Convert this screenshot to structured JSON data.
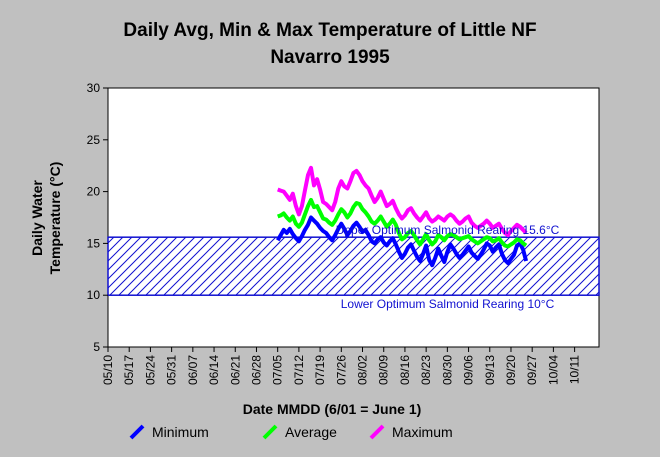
{
  "chart_data": {
    "type": "line",
    "title_line1": "Daily Avg, Min & Max Temperature of Little NF",
    "title_line2": "Navarro 1995",
    "xlabel": "Date MMDD (6/01 = June 1)",
    "ylabel_line1": "Daily Water",
    "ylabel_line2": "Temperature (°C)",
    "ylim": [
      5,
      30
    ],
    "y_ticks": [
      "5",
      "10",
      "15",
      "20",
      "25",
      "30"
    ],
    "x_ticks": [
      "05/10",
      "05/17",
      "05/24",
      "05/31",
      "06/07",
      "06/14",
      "06/21",
      "06/28",
      "07/05",
      "07/12",
      "07/19",
      "07/26",
      "08/02",
      "08/09",
      "08/16",
      "08/23",
      "08/30",
      "09/06",
      "09/13",
      "09/20",
      "09/27",
      "10/04",
      "10/11"
    ],
    "grid": false,
    "legend_placement": "bottom",
    "bands": [
      {
        "label": "Upper Optimum Salmonid Rearing 15.6°C",
        "value": 15.6
      },
      {
        "label": "Lower Optimum Salmonid Rearing 10°C",
        "value": 10
      }
    ],
    "band_color": "#1010d0",
    "series": [
      {
        "name": "Minimum",
        "color": "#0000ff",
        "values": [
          15.3,
          15.8,
          16.3,
          16.0,
          16.4,
          15.9,
          15.5,
          15.2,
          15.7,
          16.3,
          16.8,
          17.5,
          17.2,
          16.9,
          16.5,
          16.2,
          16.0,
          15.6,
          15.3,
          15.8,
          16.4,
          16.9,
          16.4,
          15.8,
          16.2,
          16.7,
          17.0,
          16.6,
          16.1,
          16.3,
          15.8,
          15.2,
          15.0,
          15.4,
          15.6,
          15.1,
          14.8,
          15.2,
          15.5,
          14.9,
          14.2,
          13.6,
          14.0,
          14.6,
          14.9,
          14.3,
          13.7,
          13.3,
          14.0,
          14.8,
          13.4,
          12.9,
          13.6,
          14.5,
          13.8,
          13.2,
          14.2,
          14.9,
          14.5,
          14.0,
          13.6,
          13.9,
          14.3,
          14.7,
          14.1,
          13.8,
          13.5,
          13.9,
          14.4,
          15.0,
          14.8,
          14.2,
          14.6,
          14.9,
          14.0,
          13.4,
          13.1,
          13.5,
          13.9,
          14.8,
          15.0,
          14.4,
          13.3
        ]
      },
      {
        "name": "Average",
        "color": "#00ff00",
        "values": [
          17.6,
          17.7,
          17.9,
          17.5,
          17.2,
          17.6,
          16.9,
          16.6,
          17.0,
          17.8,
          18.6,
          19.2,
          18.5,
          18.6,
          18.0,
          17.4,
          17.3,
          17.0,
          16.8,
          17.2,
          17.8,
          18.3,
          18.0,
          17.5,
          17.9,
          18.5,
          18.9,
          18.8,
          18.3,
          18.0,
          17.6,
          17.1,
          16.9,
          17.2,
          17.6,
          17.1,
          16.6,
          16.9,
          17.3,
          16.8,
          16.0,
          15.4,
          15.6,
          16.0,
          16.2,
          15.8,
          15.3,
          14.9,
          15.4,
          15.9,
          15.3,
          14.9,
          15.2,
          15.8,
          15.6,
          15.3,
          15.7,
          15.9,
          15.8,
          15.6,
          15.4,
          15.5,
          15.6,
          15.7,
          15.4,
          15.2,
          15.0,
          15.2,
          15.4,
          15.6,
          15.5,
          15.2,
          15.3,
          15.5,
          15.1,
          14.8,
          14.7,
          14.9,
          15.1,
          15.4,
          15.3,
          15.0,
          14.8
        ]
      },
      {
        "name": "Maximum",
        "color": "#ff00ff",
        "values": [
          20.2,
          20.1,
          20.0,
          19.6,
          19.2,
          19.8,
          18.6,
          17.8,
          18.6,
          20.1,
          21.6,
          22.3,
          20.6,
          21.2,
          20.2,
          19.0,
          18.8,
          18.5,
          18.2,
          19.0,
          20.3,
          21.0,
          20.5,
          20.3,
          21.0,
          21.8,
          22.0,
          21.6,
          21.0,
          20.6,
          20.3,
          19.6,
          19.0,
          19.4,
          20.0,
          19.3,
          18.6,
          18.8,
          19.1,
          18.4,
          17.8,
          17.4,
          17.7,
          18.2,
          18.4,
          17.9,
          17.5,
          17.2,
          17.6,
          18.0,
          17.4,
          17.1,
          17.3,
          17.6,
          17.4,
          17.2,
          17.6,
          17.8,
          17.6,
          17.2,
          16.9,
          17.1,
          17.4,
          17.6,
          17.0,
          16.7,
          16.5,
          16.7,
          16.9,
          17.2,
          16.9,
          16.5,
          16.7,
          16.9,
          16.4,
          16.0,
          15.8,
          16.2,
          16.5,
          16.8,
          16.6,
          16.3,
          16.0
        ]
      }
    ]
  }
}
